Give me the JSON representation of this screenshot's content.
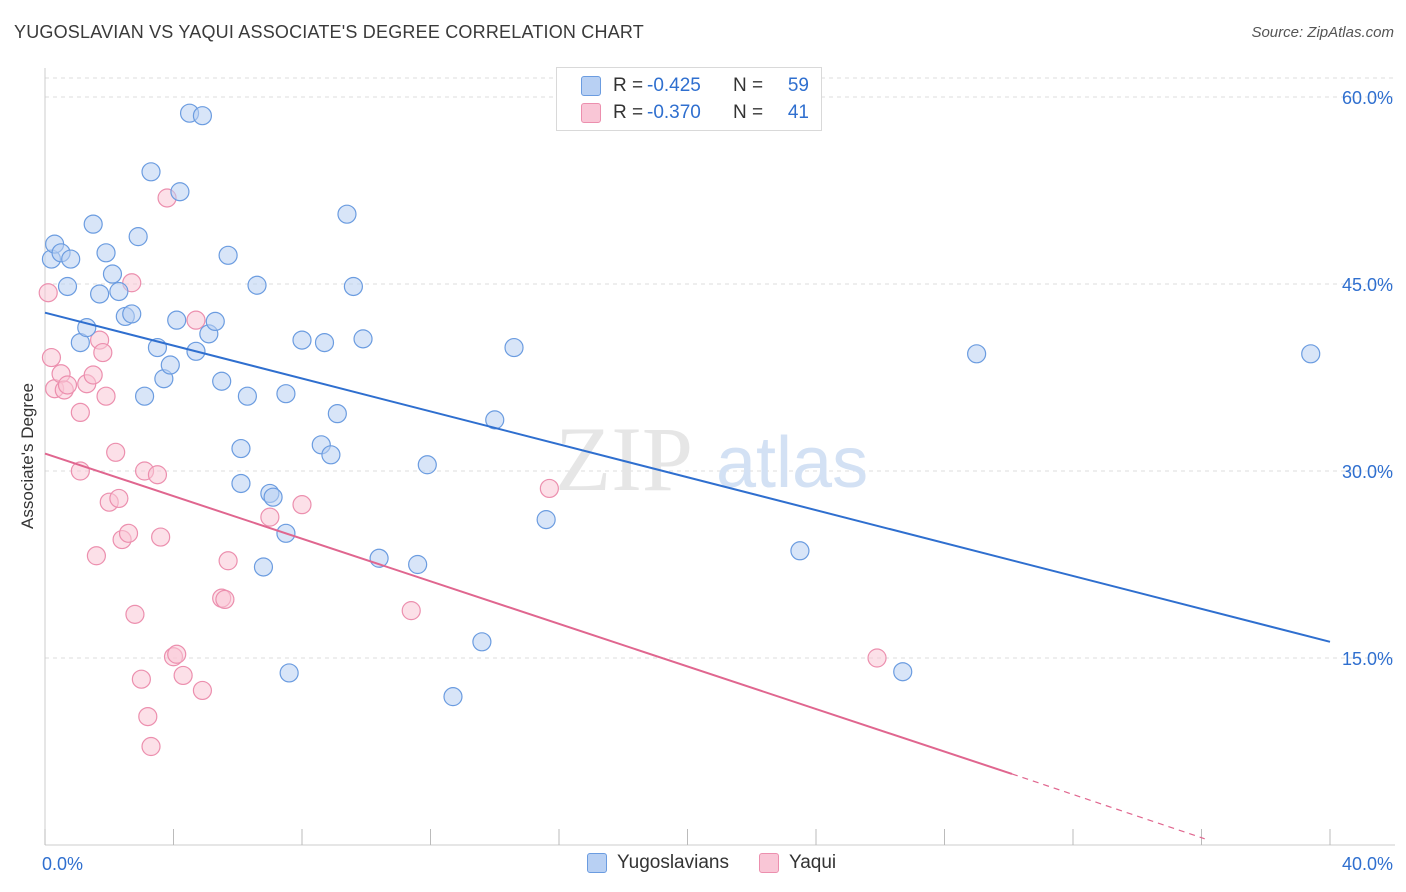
{
  "title": "YUGOSLAVIAN VS YAQUI ASSOCIATE'S DEGREE CORRELATION CHART",
  "source": "Source: ZipAtlas.com",
  "watermark": {
    "zip": "ZIP",
    "atlas": "atlas"
  },
  "legend_top": [
    {
      "r_label": "R =",
      "r_value": "-0.425",
      "n_label": "N =",
      "n_value": "59"
    },
    {
      "r_label": "R =",
      "r_value": "-0.370",
      "n_label": "N =",
      "n_value": "41"
    }
  ],
  "legend_bottom": [
    "Yugoslavians",
    "Yaqui"
  ],
  "colors": {
    "blue": "#2f6fcf",
    "blue_fill": "#b8d0f3",
    "pink": "#e0668f",
    "pink_fill": "#f9c6d6",
    "axis_text": "#2f6fcf",
    "grid": "#dedede"
  },
  "chart_data": {
    "type": "scatter",
    "title": "YUGOSLAVIAN VS YAQUI ASSOCIATE'S DEGREE CORRELATION CHART",
    "xlabel": "",
    "ylabel": "Associate's Degree",
    "xlim": [
      0,
      40
    ],
    "ylim": [
      0,
      63
    ],
    "x_tick_labels": [
      "0.0%",
      "40.0%"
    ],
    "y_ticks": [
      15,
      30,
      45,
      60
    ],
    "y_tick_labels": [
      "15.0%",
      "30.0%",
      "45.0%",
      "60.0%"
    ],
    "series": [
      {
        "name": "Yugoslavians",
        "r": -0.425,
        "n": 59,
        "trend": {
          "x0": 0,
          "y0": 42.7,
          "x1": 40,
          "y1": 16.3
        },
        "points": [
          [
            0.2,
            47.0
          ],
          [
            0.3,
            48.2
          ],
          [
            0.5,
            47.5
          ],
          [
            0.7,
            44.8
          ],
          [
            0.8,
            47.0
          ],
          [
            1.1,
            40.3
          ],
          [
            1.3,
            41.5
          ],
          [
            1.5,
            49.8
          ],
          [
            1.7,
            44.2
          ],
          [
            1.9,
            47.5
          ],
          [
            2.1,
            45.8
          ],
          [
            2.3,
            44.4
          ],
          [
            2.5,
            42.4
          ],
          [
            2.7,
            42.6
          ],
          [
            2.9,
            48.8
          ],
          [
            3.1,
            36.0
          ],
          [
            3.3,
            54.0
          ],
          [
            3.5,
            39.9
          ],
          [
            3.7,
            37.4
          ],
          [
            3.9,
            38.5
          ],
          [
            4.1,
            42.1
          ],
          [
            4.2,
            52.4
          ],
          [
            4.5,
            58.7
          ],
          [
            4.7,
            39.6
          ],
          [
            4.9,
            58.5
          ],
          [
            5.1,
            41.0
          ],
          [
            5.3,
            42.0
          ],
          [
            5.5,
            37.2
          ],
          [
            5.7,
            47.3
          ],
          [
            6.1,
            31.8
          ],
          [
            6.1,
            29.0
          ],
          [
            6.3,
            36.0
          ],
          [
            6.6,
            44.9
          ],
          [
            6.8,
            22.3
          ],
          [
            7.0,
            28.2
          ],
          [
            7.1,
            27.9
          ],
          [
            7.5,
            36.2
          ],
          [
            7.5,
            25.0
          ],
          [
            7.6,
            13.8
          ],
          [
            8.0,
            40.5
          ],
          [
            8.6,
            32.1
          ],
          [
            8.7,
            40.3
          ],
          [
            8.9,
            31.3
          ],
          [
            9.1,
            34.6
          ],
          [
            9.4,
            50.6
          ],
          [
            9.6,
            44.8
          ],
          [
            9.9,
            40.6
          ],
          [
            10.4,
            23.0
          ],
          [
            11.6,
            22.5
          ],
          [
            11.9,
            30.5
          ],
          [
            12.7,
            11.9
          ],
          [
            13.6,
            16.3
          ],
          [
            14.0,
            34.1
          ],
          [
            14.6,
            39.9
          ],
          [
            15.6,
            26.1
          ],
          [
            23.5,
            23.6
          ],
          [
            26.7,
            13.9
          ],
          [
            29.0,
            39.4
          ],
          [
            39.4,
            39.4
          ]
        ]
      },
      {
        "name": "Yaqui",
        "r": -0.37,
        "n": 41,
        "trend": {
          "x0": 0,
          "y0": 31.4,
          "x1": 30.1,
          "y1": 5.7,
          "dash_x1": 36.1,
          "dash_y1": 0.5
        },
        "points": [
          [
            0.1,
            44.3
          ],
          [
            0.2,
            39.1
          ],
          [
            0.3,
            36.6
          ],
          [
            0.5,
            37.8
          ],
          [
            0.6,
            36.5
          ],
          [
            0.7,
            36.9
          ],
          [
            1.1,
            30.0
          ],
          [
            1.1,
            34.7
          ],
          [
            1.3,
            37.0
          ],
          [
            1.5,
            37.7
          ],
          [
            1.6,
            23.2
          ],
          [
            1.7,
            40.5
          ],
          [
            1.8,
            39.5
          ],
          [
            1.9,
            36.0
          ],
          [
            2.0,
            27.5
          ],
          [
            2.2,
            31.5
          ],
          [
            2.3,
            27.8
          ],
          [
            2.4,
            24.5
          ],
          [
            2.6,
            25.0
          ],
          [
            2.7,
            45.1
          ],
          [
            2.8,
            18.5
          ],
          [
            3.0,
            13.3
          ],
          [
            3.1,
            30.0
          ],
          [
            3.2,
            10.3
          ],
          [
            3.3,
            7.9
          ],
          [
            3.5,
            29.7
          ],
          [
            3.6,
            24.7
          ],
          [
            3.8,
            51.9
          ],
          [
            4.0,
            15.1
          ],
          [
            4.1,
            15.3
          ],
          [
            4.3,
            13.6
          ],
          [
            4.7,
            42.1
          ],
          [
            4.9,
            12.4
          ],
          [
            5.5,
            19.8
          ],
          [
            5.6,
            19.7
          ],
          [
            5.7,
            22.8
          ],
          [
            7.0,
            26.3
          ],
          [
            8.0,
            27.3
          ],
          [
            11.4,
            18.8
          ],
          [
            15.7,
            28.6
          ],
          [
            25.9,
            15.0
          ]
        ]
      }
    ]
  }
}
